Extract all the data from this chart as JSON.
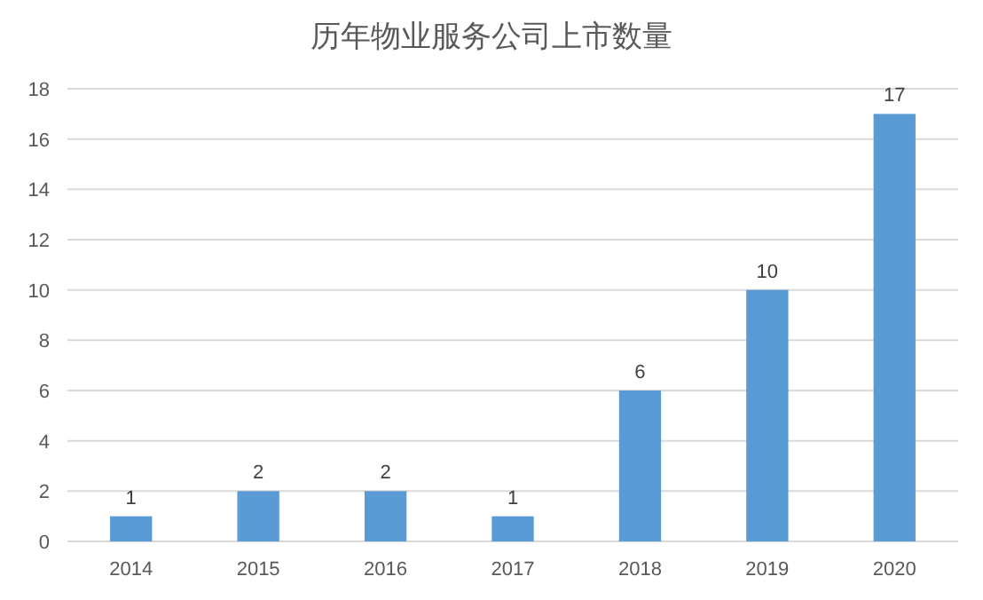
{
  "chart_data": {
    "type": "bar",
    "title": "历年物业服务公司上市数量",
    "categories": [
      "2014",
      "2015",
      "2016",
      "2017",
      "2018",
      "2019",
      "2020"
    ],
    "values": [
      1,
      2,
      2,
      1,
      6,
      10,
      17
    ],
    "color": "#5b9bd5",
    "ylim": [
      0,
      18
    ],
    "yticks": [
      0,
      2,
      4,
      6,
      8,
      10,
      12,
      14,
      16,
      18
    ],
    "grid": "y",
    "data_labels": true
  }
}
